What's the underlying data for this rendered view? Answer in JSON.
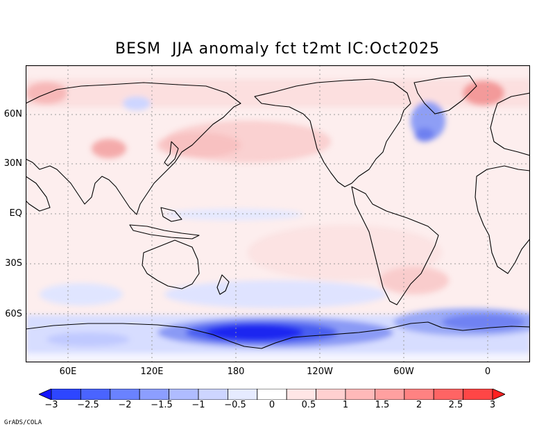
{
  "title": "BESM  JJA anomaly fct t2mt IC:Oct2025",
  "credit": "GrADS/COLA",
  "map": {
    "lat_labels": [
      "60N",
      "30N",
      "EQ",
      "30S",
      "60S"
    ],
    "lon_labels": [
      "60E",
      "120E",
      "180",
      "120W",
      "60W",
      "0"
    ],
    "center_longitude": "Pacific-centered (≈30E to 30E)",
    "variable": "2m temperature anomaly (°C)"
  },
  "colorbar": {
    "labels": [
      "−3",
      "−2.5",
      "−2",
      "−1.5",
      "−1",
      "−0.5",
      "0",
      "0.5",
      "1",
      "1.5",
      "2",
      "2.5",
      "3"
    ],
    "colors": [
      "#1414ff",
      "#2d46ff",
      "#4a64ff",
      "#6a82ff",
      "#8c9eff",
      "#afbcff",
      "#cdd5ff",
      "#e6ebff",
      "#ffffff",
      "#ffe6e6",
      "#ffd0d0",
      "#ffb9b9",
      "#ffa0a0",
      "#ff8282",
      "#ff6464",
      "#ff4646",
      "#ff2020"
    ]
  }
}
